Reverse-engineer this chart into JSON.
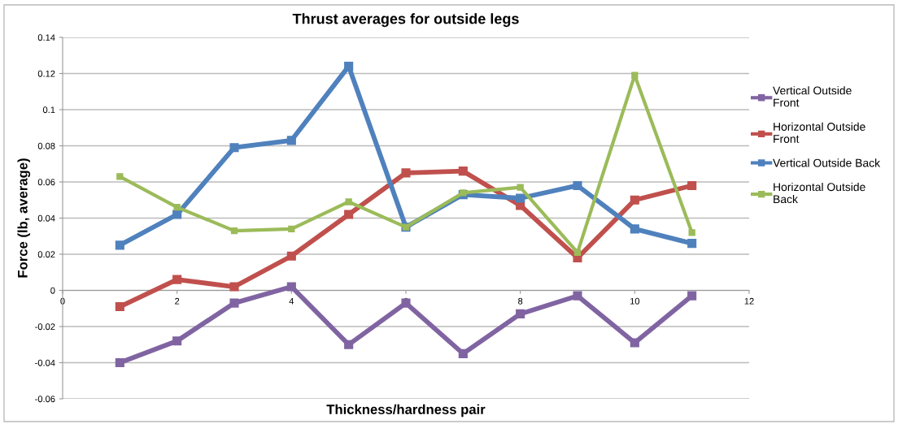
{
  "chart_data": {
    "type": "line",
    "title": "Thrust averages for outside legs",
    "xlabel": "Thickness/hardness pair",
    "ylabel": "Force (lb, average)",
    "x": [
      1,
      2,
      3,
      4,
      5,
      6,
      7,
      8,
      9,
      10,
      11
    ],
    "series": [
      {
        "name": "Vertical Outside Front",
        "color": "#8064a2",
        "values": [
          -0.04,
          -0.028,
          -0.007,
          0.002,
          -0.03,
          -0.007,
          -0.035,
          -0.013,
          -0.003,
          -0.029,
          -0.003
        ]
      },
      {
        "name": "Horizontal Outside Front",
        "color": "#c0504d",
        "values": [
          -0.009,
          0.006,
          0.002,
          0.019,
          0.042,
          0.065,
          0.066,
          0.047,
          0.018,
          0.05,
          0.058
        ]
      },
      {
        "name": "Vertical Outside Back",
        "color": "#4f81bd",
        "values": [
          0.025,
          0.042,
          0.079,
          0.083,
          0.124,
          0.035,
          0.053,
          0.051,
          0.058,
          0.034,
          0.026
        ]
      },
      {
        "name": "Horizontal Outside Back",
        "color": "#9bbb59",
        "values": [
          0.063,
          0.046,
          0.033,
          0.034,
          0.049,
          0.035,
          0.054,
          0.057,
          0.021,
          0.119,
          0.032
        ]
      }
    ],
    "xlim": [
      0,
      12
    ],
    "xticks": [
      0,
      2,
      4,
      6,
      8,
      10,
      12
    ],
    "ylim": [
      -0.06,
      0.14
    ],
    "yticks": [
      {
        "value": -0.06,
        "label": "-0.06"
      },
      {
        "value": -0.04,
        "label": "-0.04"
      },
      {
        "value": -0.02,
        "label": "-0.02"
      },
      0,
      0.02,
      0.04,
      0.06,
      0.08,
      0.1,
      0.12,
      0.14
    ],
    "grid": "y",
    "legend": "right",
    "marker": "square",
    "line_style": "solid"
  }
}
